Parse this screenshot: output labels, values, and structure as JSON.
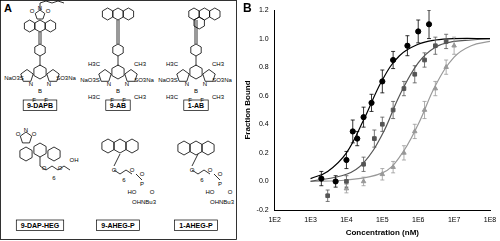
{
  "panel_a": {
    "label": "A",
    "compounds": [
      {
        "name": "9-DAPB",
        "atoms": [
          "O",
          "N",
          "O",
          "NaO3S",
          "SO3Na",
          "N",
          "B",
          "N",
          "F",
          "F"
        ]
      },
      {
        "name": "9-AB",
        "atoms": [
          "H3C",
          "CH3",
          "NaO3S",
          "SO3Na",
          "N",
          "B",
          "N",
          "H3C",
          "F",
          "F",
          "CH3"
        ]
      },
      {
        "name": "1-AB",
        "atoms": [
          "H3C",
          "CH3",
          "NaO3S",
          "SO3Na",
          "N",
          "B",
          "N",
          "H3C",
          "F",
          "F",
          "CH3"
        ]
      },
      {
        "name": "9-DAP-HEG",
        "atoms": [
          "O",
          "N",
          "O",
          "O",
          "O",
          "OH",
          "6"
        ]
      },
      {
        "name": "9-AHEG-P",
        "atoms": [
          "O",
          "O",
          "P",
          "O",
          "HO",
          "O",
          "OHNBu3",
          "6"
        ]
      },
      {
        "name": "1-AHEG-P",
        "atoms": [
          "O",
          "O",
          "P",
          "O",
          "HO",
          "O",
          "OHNBu3",
          "6"
        ]
      }
    ]
  },
  "panel_b": {
    "label": "B"
  },
  "chart_data": {
    "type": "scatter",
    "x_label": "Concentration (nM)",
    "y_label": "Fraction Bound",
    "log": "x",
    "grid": false,
    "xlim": [
      100,
      100000000
    ],
    "xticks": [
      {
        "value": 100,
        "label": "1E2"
      },
      {
        "value": 1000,
        "label": "1E3"
      },
      {
        "value": 10000,
        "label": "1E4"
      },
      {
        "value": 100000,
        "label": "1E5"
      },
      {
        "value": 1000000,
        "label": "1E6"
      },
      {
        "value": 10000000,
        "label": "1E7"
      },
      {
        "value": 100000000,
        "label": "1E8"
      }
    ],
    "ylim": [
      -0.2,
      1.2
    ],
    "yticks": [
      -0.2,
      {
        "value": 0,
        "label": "0.0"
      },
      0.2,
      0.4,
      0.6,
      0.8,
      {
        "value": 1,
        "label": "1.0"
      },
      1.2
    ],
    "series": [
      {
        "type": "scatter",
        "color": "#000000",
        "marker": "circle",
        "x": [
          2000,
          5000,
          10000,
          15000,
          20000,
          30000,
          50000,
          100000,
          200000,
          500000,
          1000000,
          2000000
        ],
        "values": [
          0.02,
          0.0,
          0.15,
          0.35,
          0.3,
          0.45,
          0.55,
          0.7,
          0.85,
          0.95,
          1.05,
          1.1
        ],
        "errors": [
          0.05,
          0.04,
          0.06,
          0.08,
          0.05,
          0.07,
          0.06,
          0.08,
          0.06,
          0.07,
          0.08,
          0.1
        ]
      },
      {
        "type": "scatter",
        "color": "#555555",
        "marker": "square",
        "x": [
          3000,
          10000,
          30000,
          60000,
          100000,
          200000,
          400000,
          800000,
          1500000,
          3000000,
          6000000
        ],
        "values": [
          -0.1,
          0.0,
          0.12,
          0.3,
          0.4,
          0.5,
          0.65,
          0.75,
          0.85,
          0.95,
          0.98
        ],
        "errors": [
          0.04,
          0.04,
          0.05,
          0.06,
          0.05,
          0.06,
          0.05,
          0.06,
          0.05,
          0.06,
          0.05
        ]
      },
      {
        "type": "scatter",
        "color": "#999999",
        "marker": "triangle",
        "x": [
          10000,
          30000,
          100000,
          200000,
          400000,
          800000,
          1500000,
          3000000,
          6000000,
          10000000
        ],
        "values": [
          -0.05,
          0.0,
          0.05,
          0.1,
          0.2,
          0.35,
          0.5,
          0.65,
          0.8,
          0.95
        ],
        "errors": [
          0.03,
          0.03,
          0.04,
          0.04,
          0.05,
          0.05,
          0.06,
          0.05,
          0.05,
          0.06
        ]
      },
      {
        "type": "line",
        "color": "#000000",
        "line_style": "solid",
        "x": [
          1000,
          3000,
          10000,
          30000,
          100000,
          300000,
          1000000,
          3000000,
          10000000,
          100000000
        ],
        "values": [
          0.02,
          0.07,
          0.2,
          0.43,
          0.71,
          0.88,
          0.96,
          0.99,
          1.0,
          1.0
        ]
      },
      {
        "type": "line",
        "color": "#555555",
        "line_style": "solid",
        "x": [
          1000,
          10000,
          30000,
          100000,
          300000,
          1000000,
          3000000,
          10000000,
          30000000,
          100000000
        ],
        "values": [
          0.0,
          0.05,
          0.13,
          0.33,
          0.6,
          0.83,
          0.94,
          0.98,
          0.99,
          1.0
        ]
      },
      {
        "type": "line",
        "color": "#999999",
        "line_style": "solid",
        "x": [
          1000,
          10000,
          100000,
          300000,
          1000000,
          3000000,
          10000000,
          30000000,
          100000000
        ],
        "values": [
          0.0,
          0.01,
          0.06,
          0.17,
          0.4,
          0.67,
          0.87,
          0.95,
          0.98
        ]
      }
    ]
  }
}
